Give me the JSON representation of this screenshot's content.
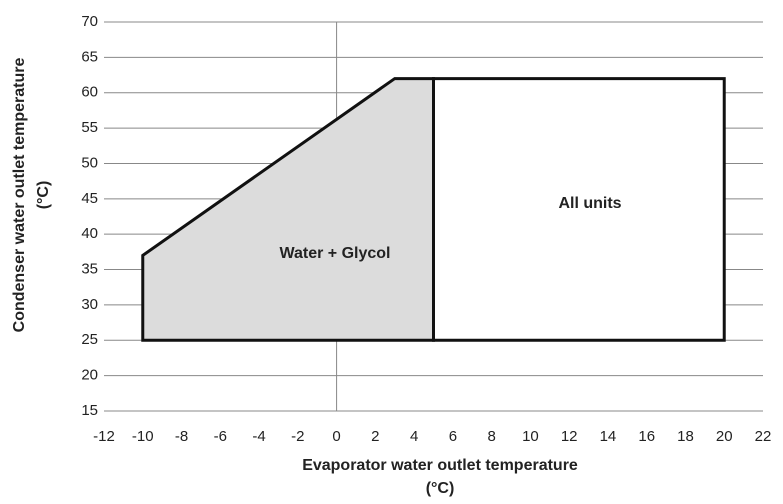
{
  "chart_data": {
    "type": "area",
    "xlabel": [
      "Evaporator water outlet temperature",
      "(°C)"
    ],
    "ylabel": [
      "Condenser water outlet temperature",
      "(°C)"
    ],
    "xlim": [
      -12,
      22
    ],
    "xticks": [
      -12,
      -10,
      -8,
      -6,
      -4,
      -2,
      0,
      2,
      4,
      6,
      8,
      10,
      12,
      14,
      16,
      18,
      20,
      22
    ],
    "ylim": [
      15,
      70
    ],
    "yticks": [
      15,
      20,
      25,
      30,
      35,
      40,
      45,
      50,
      55,
      60,
      65,
      70
    ],
    "grid": true,
    "series": [
      {
        "name": "Water + Glycol",
        "color": "#dcdcdc",
        "x": [
          -10,
          -10,
          3,
          5,
          5
        ],
        "values": [
          25,
          37,
          62,
          62,
          25
        ]
      },
      {
        "name": "All units",
        "color": "#ffffff",
        "x": [
          5,
          5,
          20,
          20
        ],
        "values": [
          25,
          62,
          62,
          25
        ]
      }
    ]
  }
}
